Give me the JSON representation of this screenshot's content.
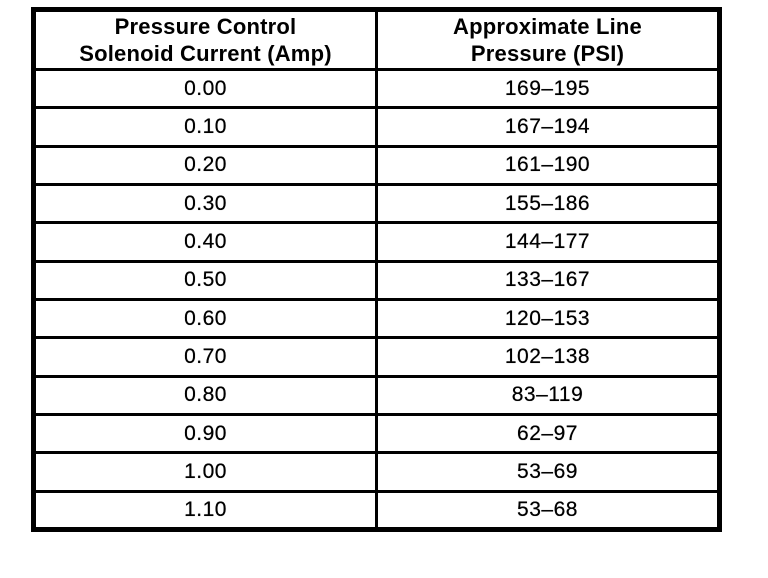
{
  "chart_data": {
    "type": "table",
    "columns": [
      "Pressure Control\nSolenoid Current (Amp)",
      "Approximate Line\nPressure (PSI)"
    ],
    "rows": [
      [
        "0.00",
        "169–195"
      ],
      [
        "0.10",
        "167–194"
      ],
      [
        "0.20",
        "161–190"
      ],
      [
        "0.30",
        "155–186"
      ],
      [
        "0.40",
        "144–177"
      ],
      [
        "0.50",
        "133–167"
      ],
      [
        "0.60",
        "120–153"
      ],
      [
        "0.70",
        "102–138"
      ],
      [
        "0.80",
        "83–119"
      ],
      [
        "0.90",
        "62–97"
      ],
      [
        "1.00",
        "53–69"
      ],
      [
        "1.10",
        "53–68"
      ]
    ],
    "solenoid_current_amp": [
      0.0,
      0.1,
      0.2,
      0.3,
      0.4,
      0.5,
      0.6,
      0.7,
      0.8,
      0.9,
      1.0,
      1.1
    ],
    "line_pressure_psi_min": [
      169,
      167,
      161,
      155,
      144,
      133,
      120,
      102,
      83,
      62,
      53,
      53
    ],
    "line_pressure_psi_max": [
      195,
      194,
      190,
      186,
      177,
      167,
      153,
      138,
      119,
      97,
      69,
      68
    ]
  },
  "colors": {
    "border": "#000000",
    "text": "#000000",
    "background": "#ffffff"
  }
}
